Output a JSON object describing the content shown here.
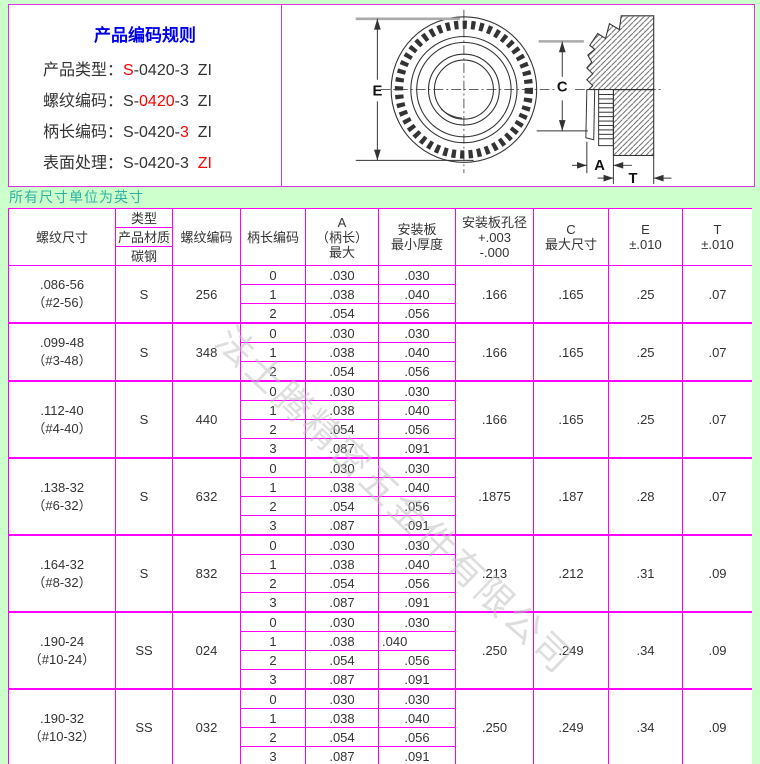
{
  "page": {
    "units_note": "所有尺寸单位为英寸",
    "watermark": "法士腾精密五金件有限公司"
  },
  "coding_rules": {
    "title": "产品编码规则",
    "lines": [
      {
        "label": "产品类型：",
        "parts": [
          {
            "text": "S",
            "red": true
          },
          {
            "text": "-0420-3  ZI",
            "red": false
          }
        ]
      },
      {
        "label": "螺纹编码：",
        "parts": [
          {
            "text": "S-",
            "red": false
          },
          {
            "text": "0420",
            "red": true
          },
          {
            "text": "-3  ZI",
            "red": false
          }
        ]
      },
      {
        "label": "柄长编码：",
        "parts": [
          {
            "text": "S-0420-",
            "red": false
          },
          {
            "text": "3",
            "red": true
          },
          {
            "text": "  ZI",
            "red": false
          }
        ]
      },
      {
        "label": "表面处理：",
        "parts": [
          {
            "text": "S-0420-3  ",
            "red": false
          },
          {
            "text": "ZI",
            "red": true
          }
        ]
      }
    ]
  },
  "drawing": {
    "labels": {
      "e": "E",
      "c": "C",
      "a": "A",
      "t": "T"
    }
  },
  "table": {
    "headers": {
      "thread": "螺纹尺寸",
      "type_group": [
        "类型",
        "产品材质",
        "碳钢"
      ],
      "thread_code": "螺纹编码",
      "shank_code": "柄长编码",
      "a": "A\n（柄长）\n最大",
      "plate": "安装板\n最小厚度",
      "hole": "安装板孔径\n+.003\n-.000",
      "c": "C\n最大尺寸",
      "e": "E\n±.010",
      "t": "T\n±.010"
    },
    "groups": [
      {
        "thread": ".086-56",
        "thread_alt": "（#2-56）",
        "material": "S",
        "thread_code": "256",
        "subs": [
          [
            "0",
            ".030",
            ".030"
          ],
          [
            "1",
            ".038",
            ".040"
          ],
          [
            "2",
            ".054",
            ".056"
          ]
        ],
        "hole": ".166",
        "c_max": ".165",
        "e": ".25",
        "t": ".07"
      },
      {
        "thread": ".099-48",
        "thread_alt": "（#3-48）",
        "material": "S",
        "thread_code": "348",
        "subs": [
          [
            "0",
            ".030",
            ".030"
          ],
          [
            "1",
            ".038",
            ".040"
          ],
          [
            "2",
            ".054",
            ".056"
          ]
        ],
        "hole": ".166",
        "c_max": ".165",
        "e": ".25",
        "t": ".07"
      },
      {
        "thread": ".112-40",
        "thread_alt": "（#4-40）",
        "material": "S",
        "thread_code": "440",
        "subs": [
          [
            "0",
            ".030",
            ".030"
          ],
          [
            "1",
            ".038",
            ".040"
          ],
          [
            "2",
            ".054",
            ".056"
          ],
          [
            "3",
            ".087",
            ".091"
          ]
        ],
        "hole": ".166",
        "c_max": ".165",
        "e": ".25",
        "t": ".07"
      },
      {
        "thread": ".138-32",
        "thread_alt": "（#6-32）",
        "material": "S",
        "thread_code": "632",
        "subs": [
          [
            "0",
            ".030",
            ".030"
          ],
          [
            "1",
            ".038",
            ".040"
          ],
          [
            "2",
            ".054",
            ".056"
          ],
          [
            "3",
            ".087",
            ".091"
          ]
        ],
        "hole": ".1875",
        "c_max": ".187",
        "e": ".28",
        "t": ".07"
      },
      {
        "thread": ".164-32",
        "thread_alt": "（#8-32）",
        "material": "S",
        "thread_code": "832",
        "subs": [
          [
            "0",
            ".030",
            ".030"
          ],
          [
            "1",
            ".038",
            ".040"
          ],
          [
            "2",
            ".054",
            ".056"
          ],
          [
            "3",
            ".087",
            ".091"
          ]
        ],
        "hole": ".213",
        "c_max": ".212",
        "e": ".31",
        "t": ".09"
      },
      {
        "thread": ".190-24",
        "thread_alt": "（#10-24）",
        "material": "SS",
        "thread_code": "024",
        "subs": [
          [
            "0",
            ".030",
            ".030"
          ],
          [
            "1",
            ".038",
            ".040",
            "left"
          ],
          [
            "2",
            ".054",
            ".056"
          ],
          [
            "3",
            ".087",
            ".091"
          ]
        ],
        "hole": ".250",
        "c_max": ".249",
        "e": ".34",
        "t": ".09"
      },
      {
        "thread": ".190-32",
        "thread_alt": "（#10-32）",
        "material": "SS",
        "thread_code": "032",
        "subs": [
          [
            "0",
            ".030",
            ".030"
          ],
          [
            "1",
            ".038",
            ".040"
          ],
          [
            "2",
            ".054",
            ".056"
          ],
          [
            "3",
            ".087",
            ".091"
          ]
        ],
        "hole": ".250",
        "c_max": ".249",
        "e": ".34",
        "t": ".09"
      }
    ]
  },
  "colors": {
    "table_border": "#ff00ff",
    "box_border": "#e030e0",
    "accent_red": "#ff0000",
    "title_blue": "#0000ee",
    "units_teal": "#2fb3a3",
    "page_bg": "#ccffcc"
  }
}
